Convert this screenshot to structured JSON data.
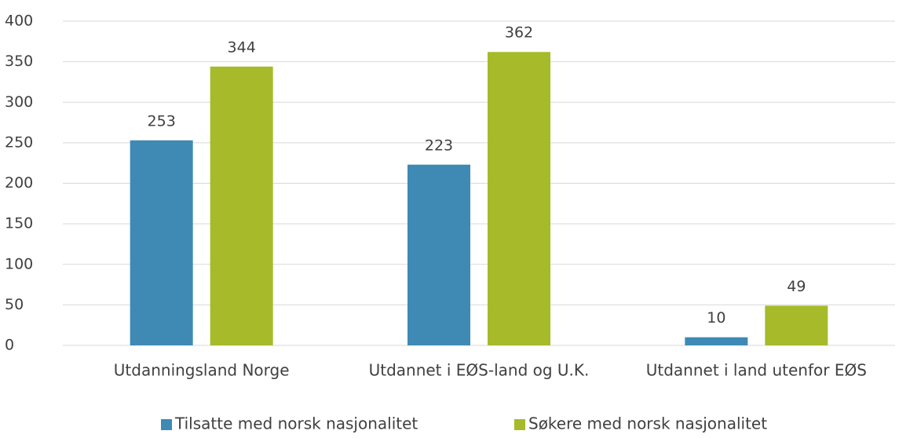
{
  "chart_data": {
    "type": "bar",
    "categories": [
      "Utdanningsland Norge",
      "Utdannet i EØS-land og U.K.",
      "Utdannet i land utenfor EØS"
    ],
    "series": [
      {
        "name": "Tilsatte med norsk nasjonalitet",
        "color": "#3e8ab4",
        "values": [
          253,
          223,
          10
        ]
      },
      {
        "name": "Søkere med norsk nasjonalitet",
        "color": "#a6ba2a",
        "values": [
          344,
          362,
          49
        ]
      }
    ],
    "ylim": [
      0,
      400
    ],
    "yticks": [
      0,
      50,
      100,
      150,
      200,
      250,
      300,
      350,
      400
    ],
    "grid": true,
    "legend": "bottom"
  }
}
